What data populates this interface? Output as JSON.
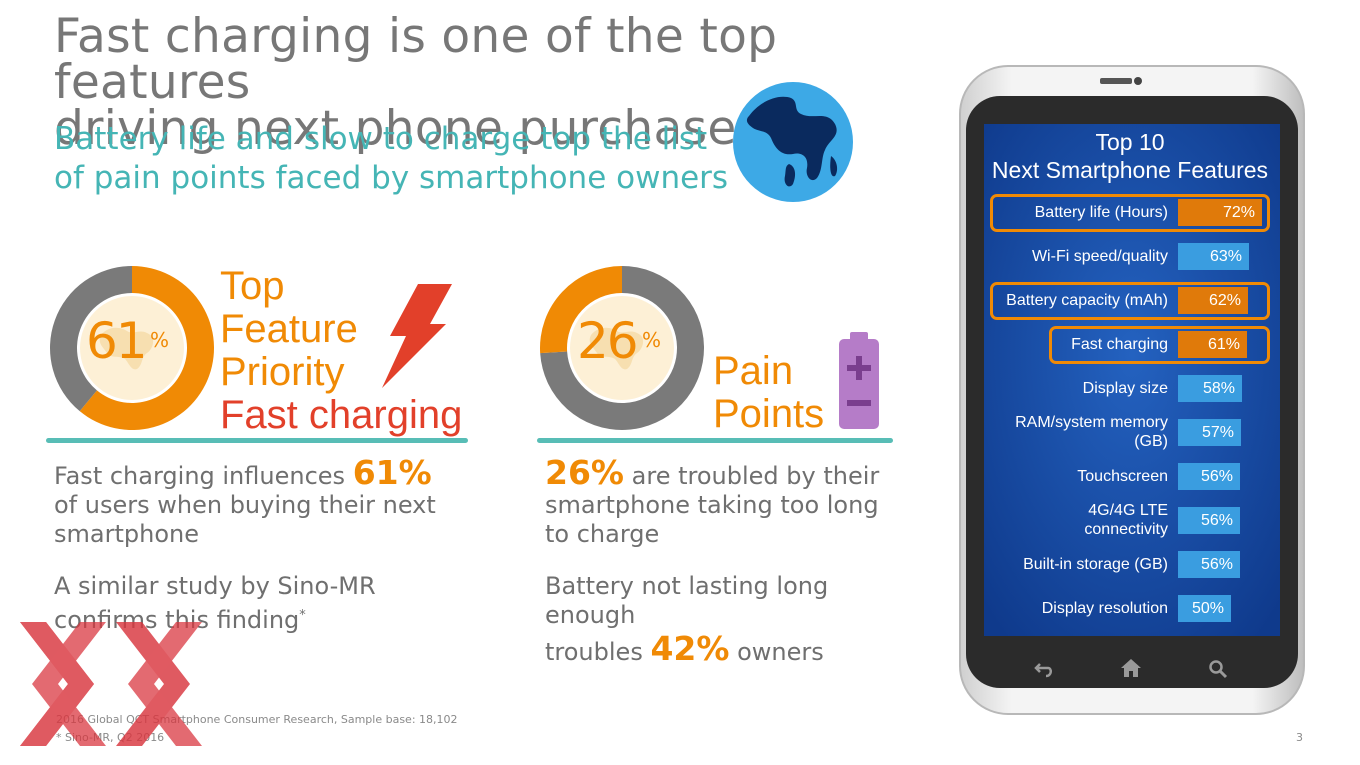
{
  "headline": {
    "line1": "Fast charging is one of the top features",
    "line2": "driving next phone purchase"
  },
  "subheadline": {
    "line1": "Battery life and slow to charge top the list",
    "line2": "of pain points faced by smartphone owners"
  },
  "feature_priority": {
    "percent_value": "61",
    "percent_sign": "%",
    "line1": "Top",
    "line2": "Feature",
    "line3": "Priority",
    "line4": "Fast charging",
    "body1_a": "Fast charging influences",
    "body1_hl": "61%",
    "body1_b": "of users when buying their next",
    "body1_c": "smartphone",
    "body2_a": "A similar study by Sino-MR",
    "body2_b": "confirms this finding",
    "body2_mark": "*"
  },
  "pain_points": {
    "percent_value": "26",
    "percent_sign": "%",
    "line1": "Pain",
    "line2": "Points",
    "body1_hl": "26%",
    "body1_a": "are troubled by their",
    "body1_b": "smartphone taking  too long",
    "body1_c": "to charge",
    "body2_a": "Battery not lasting long enough",
    "body2_b": "troubles",
    "body2_hl": "42%",
    "body2_c": "owners"
  },
  "footnotes": {
    "line1": "2016 Global QCT Smartphone Consumer Research, Sample base: 18,102",
    "line2": "* Sino-MR, Q2 2016"
  },
  "page_number": "3",
  "phone_screen": {
    "title_line1": "Top 10",
    "title_line2": "Next Smartphone Features"
  },
  "colors": {
    "orange": "#f08a05",
    "red": "#e2402a",
    "teal": "#58bdb6",
    "gray": "#7a7a7a",
    "screen_blue": "#1a4fa8",
    "bar_blue": "#3a9de0"
  },
  "chart_data": [
    {
      "type": "pie",
      "categories": [
        "Fast charging",
        "Other"
      ],
      "values": [
        61,
        39
      ],
      "title": ""
    },
    {
      "type": "pie",
      "categories": [
        "Pain Points",
        "Other"
      ],
      "values": [
        26,
        74
      ],
      "title": ""
    },
    {
      "type": "bar",
      "orientation": "horizontal",
      "title": "Top 10 Next Smartphone Features",
      "categories": [
        "Battery life (Hours)",
        "Wi-Fi speed/quality",
        "Battery capacity (mAh)",
        "Fast charging",
        "Display size",
        "RAM/system memory (GB)",
        "Touchscreen",
        "4G/4G LTE connectivity",
        "Built-in storage (GB)",
        "Display resolution"
      ],
      "values": [
        72,
        63,
        62,
        61,
        58,
        57,
        56,
        56,
        56,
        50
      ],
      "labels": [
        "72%",
        "63%",
        "62%",
        "61%",
        "58%",
        "57%",
        "56%",
        "56%",
        "56%",
        "50%"
      ],
      "highlighted": [
        true,
        false,
        true,
        true,
        false,
        false,
        false,
        false,
        false,
        false
      ],
      "label_lines": [
        [
          "Battery life (Hours)"
        ],
        [
          "Wi-Fi speed/quality"
        ],
        [
          "Battery capacity (mAh)"
        ],
        [
          "Fast charging"
        ],
        [
          "Display size"
        ],
        [
          "RAM/system memory",
          "(GB)"
        ],
        [
          "Touchscreen"
        ],
        [
          "4G/4G LTE",
          "connectivity"
        ],
        [
          "Built-in storage (GB)"
        ],
        [
          "Display resolution"
        ]
      ]
    }
  ]
}
